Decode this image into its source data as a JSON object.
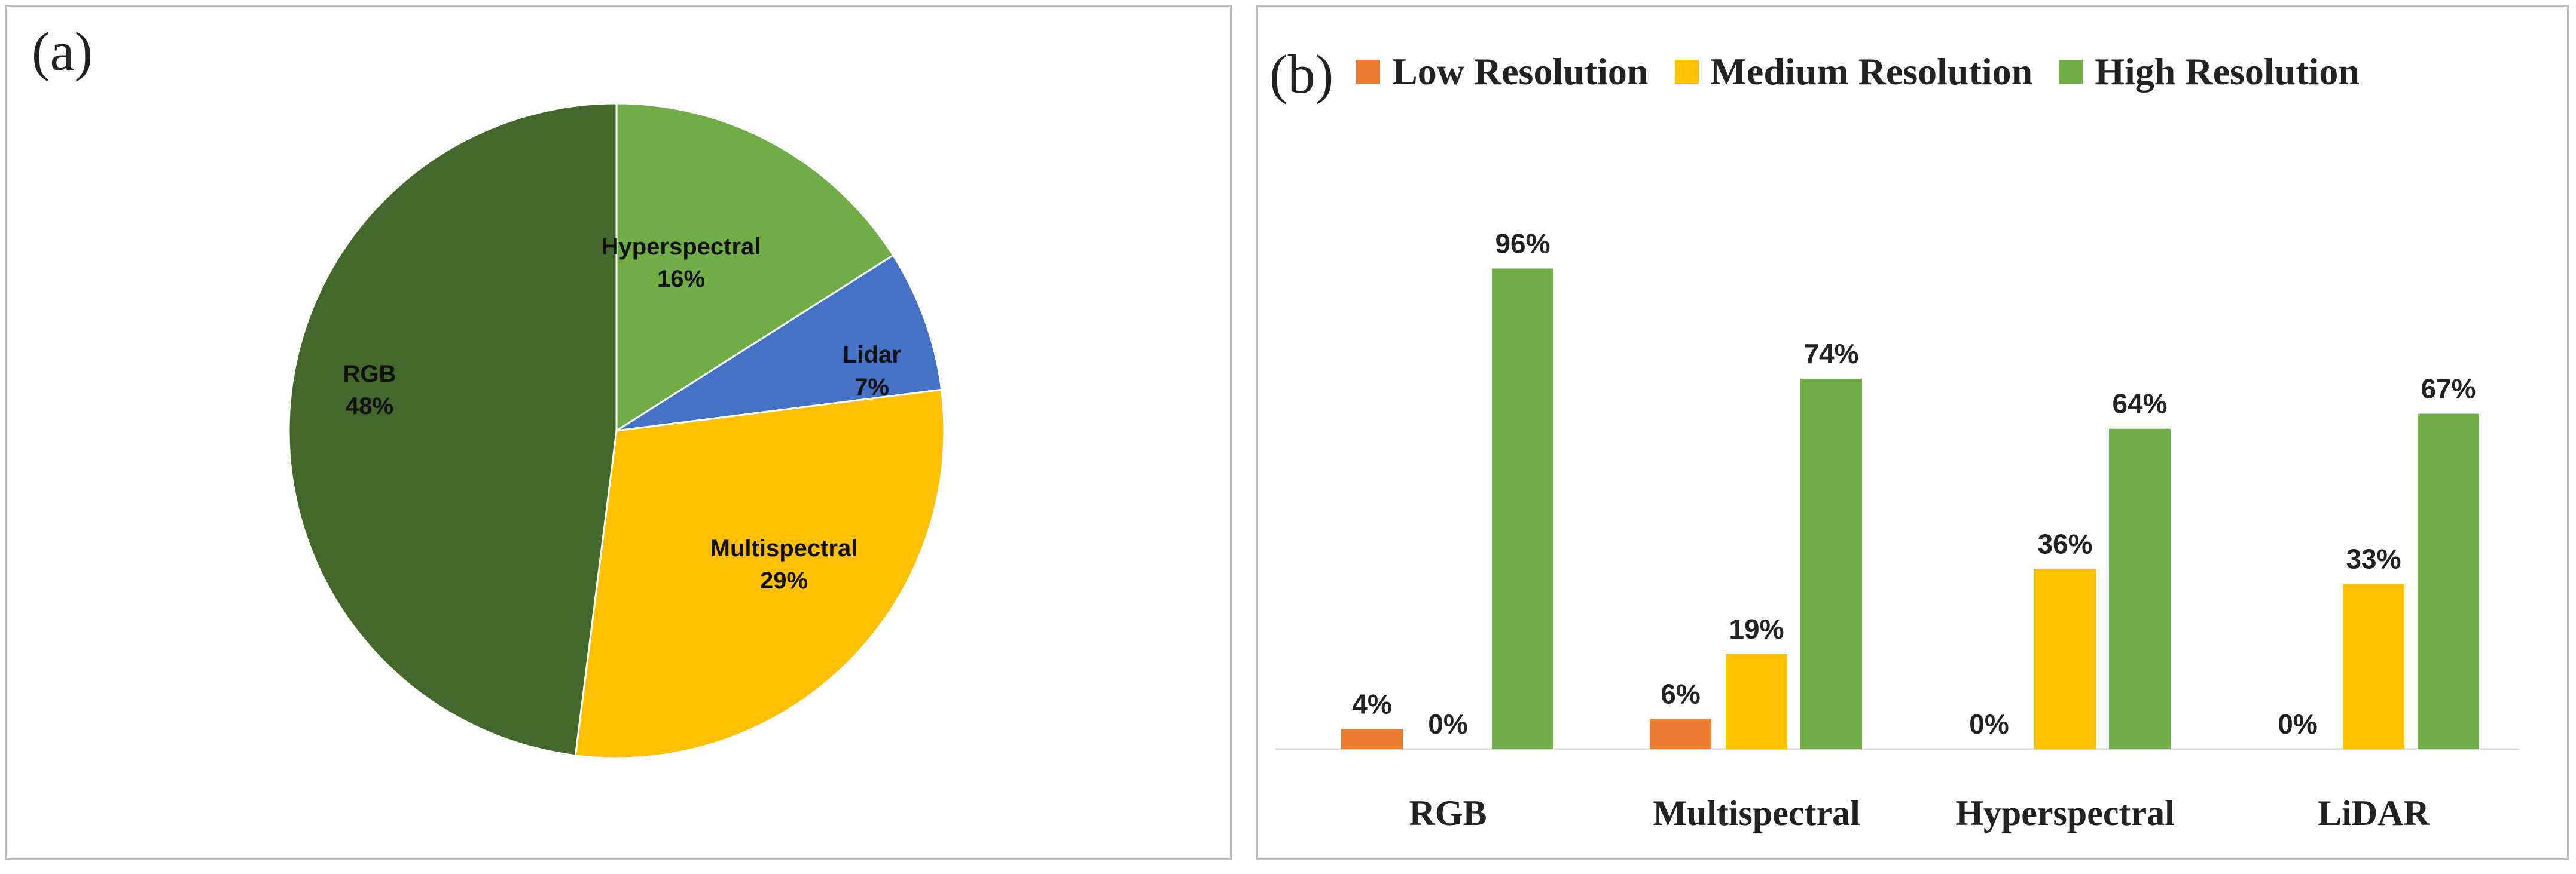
{
  "chart_data": [
    {
      "type": "pie",
      "panel_label": "(a)",
      "slices": [
        {
          "name": "Hyperspectral",
          "value": 16,
          "label": "16%",
          "color": "#70ad47"
        },
        {
          "name": "Lidar",
          "value": 7,
          "label": "7%",
          "color": "#4472c4"
        },
        {
          "name": "Multispectral",
          "value": 29,
          "label": "29%",
          "color": "#ffc000"
        },
        {
          "name": "RGB",
          "value": 48,
          "label": "48%",
          "color": "#43682b"
        }
      ]
    },
    {
      "type": "bar",
      "panel_label": "(b)",
      "categories": [
        "RGB",
        "Multispectral",
        "Hyperspectral",
        "LiDAR"
      ],
      "series": [
        {
          "name": "Low Resolution",
          "color": "#ed7d31",
          "values": [
            4,
            6,
            0,
            0
          ],
          "labels": [
            "4%",
            "6%",
            "0%",
            "0%"
          ]
        },
        {
          "name": "Medium Resolution",
          "color": "#ffc000",
          "values": [
            0,
            19,
            36,
            33
          ],
          "labels": [
            "0%",
            "19%",
            "36%",
            "33%"
          ]
        },
        {
          "name": "High Resolution",
          "color": "#70ad47",
          "values": [
            96,
            74,
            64,
            67
          ],
          "labels": [
            "96%",
            "74%",
            "64%",
            "67%"
          ]
        }
      ],
      "ylim": [
        0,
        100
      ],
      "legend_position": "top",
      "grid": false
    }
  ]
}
